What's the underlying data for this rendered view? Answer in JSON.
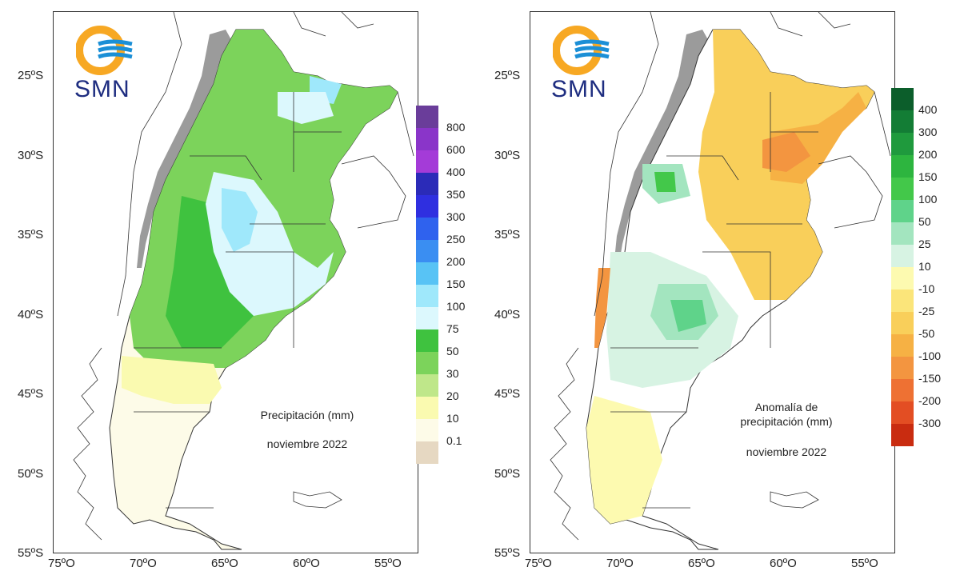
{
  "figure": {
    "lat_ticks": [
      "25ºS",
      "30ºS",
      "35ºS",
      "40ºS",
      "45ºS",
      "50ºS",
      "55ºS"
    ],
    "lon_ticks": [
      "75ºO",
      "70ºO",
      "65ºO",
      "60ºO",
      "55ºO"
    ]
  },
  "left_map": {
    "logo_text": "SMN",
    "caption_line1": "Precipitación (mm)",
    "caption_line2": "noviembre 2022",
    "legend": [
      {
        "label": "800",
        "color": "#6a3d9a"
      },
      {
        "label": "600",
        "color": "#8a35c9"
      },
      {
        "label": "400",
        "color": "#a43bd8"
      },
      {
        "label": "350",
        "color": "#2b2bb8"
      },
      {
        "label": "300",
        "color": "#2f2fe0"
      },
      {
        "label": "250",
        "color": "#2f62ee"
      },
      {
        "label": "200",
        "color": "#3a8ef2"
      },
      {
        "label": "150",
        "color": "#58c3f5"
      },
      {
        "label": "100",
        "color": "#9fe8fb"
      },
      {
        "label": "75",
        "color": "#dcf8fd"
      },
      {
        "label": "50",
        "color": "#3fc23f"
      },
      {
        "label": "30",
        "color": "#7cd35b"
      },
      {
        "label": "20",
        "color": "#bfe78a"
      },
      {
        "label": "10",
        "color": "#fafab0"
      },
      {
        "label": "0.1",
        "color": "#fdfbe8"
      },
      {
        "label": "",
        "color": "#e6d8c2"
      }
    ]
  },
  "right_map": {
    "logo_text": "SMN",
    "caption_line1": "Anomalía de",
    "caption_line2": "precipitación (mm)",
    "caption_line3": "noviembre 2022",
    "legend": [
      {
        "label": "400",
        "color": "#0c5e2b"
      },
      {
        "label": "300",
        "color": "#137d35"
      },
      {
        "label": "200",
        "color": "#1f9a3d"
      },
      {
        "label": "150",
        "color": "#2db53f"
      },
      {
        "label": "100",
        "color": "#43c84a"
      },
      {
        "label": "50",
        "color": "#5fd38a"
      },
      {
        "label": "25",
        "color": "#a3e5bf"
      },
      {
        "label": "10",
        "color": "#d7f3e3"
      },
      {
        "label": "-10",
        "color": "#fdfab0"
      },
      {
        "label": "-25",
        "color": "#fbe57a"
      },
      {
        "label": "-50",
        "color": "#f9cf5a"
      },
      {
        "label": "-100",
        "color": "#f6b144"
      },
      {
        "label": "-150",
        "color": "#f39540"
      },
      {
        "label": "-200",
        "color": "#ee7133"
      },
      {
        "label": "-300",
        "color": "#e34e23"
      },
      {
        "label": "",
        "color": "#c92c10"
      }
    ]
  }
}
